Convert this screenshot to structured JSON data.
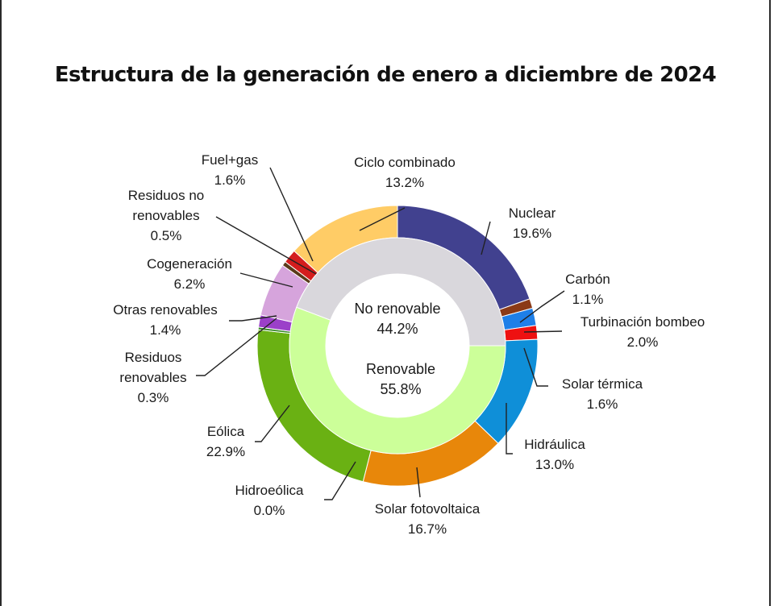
{
  "chart_data": {
    "type": "pie",
    "title": "Estructura de la generación de enero a diciembre de 2024",
    "outer": [
      {
        "name": "Nuclear",
        "value_label": "19.6%",
        "value": 19.6,
        "color": "#41418f"
      },
      {
        "name": "Carbón",
        "value_label": "1.1%",
        "value": 1.1,
        "color": "#8b3a17"
      },
      {
        "name": "Turbinación bombeo",
        "value_label": "2.0%",
        "value": 2.0,
        "color": "#1e7fe8"
      },
      {
        "name": "Solar térmica",
        "value_label": "1.6%",
        "value": 1.6,
        "color": "#ee1111"
      },
      {
        "name": "Hidráulica",
        "value_label": "13.0%",
        "value": 13.0,
        "color": "#0f8fd8"
      },
      {
        "name": "Solar fotovoltaica",
        "value_label": "16.7%",
        "value": 16.7,
        "color": "#e8870a"
      },
      {
        "name": "Hidroeólica",
        "value_label": "0.0%",
        "value": 0.0,
        "color": "#5a7a10"
      },
      {
        "name": "Eólica",
        "value_label": "22.9%",
        "value": 22.9,
        "color": "#6ab113"
      },
      {
        "name": "Residuos renovables",
        "value_label": "0.3%",
        "value": 0.3,
        "color": "#3b8a2a"
      },
      {
        "name": "Otras renovables",
        "value_label": "1.4%",
        "value": 1.4,
        "color": "#9b40c9"
      },
      {
        "name": "Cogeneración",
        "value_label": "6.2%",
        "value": 6.2,
        "color": "#d6a4dc"
      },
      {
        "name": "Residuos no renovables",
        "value_label": "0.5%",
        "value": 0.5,
        "color": "#5a3a1a"
      },
      {
        "name": "Fuel+gas",
        "value_label": "1.6%",
        "value": 1.6,
        "color": "#d41d1d"
      },
      {
        "name": "Ciclo combinado",
        "value_label": "13.2%",
        "value": 13.2,
        "color": "#ffcc66"
      }
    ],
    "inner": [
      {
        "name": "Renovable",
        "value_label": "55.8%",
        "value": 55.8,
        "color": "#ccff99"
      },
      {
        "name": "No renovable",
        "value_label": "44.2%",
        "value": 44.2,
        "color": "#d9d7dc"
      }
    ],
    "labels_text": {
      "Nuclear": [
        "Nuclear",
        "19.6%"
      ],
      "Carbón": [
        "Carbón",
        "1.1%"
      ],
      "Turbinación bombeo": [
        "Turbinación bombeo",
        "2.0%"
      ],
      "Solar térmica": [
        "Solar térmica",
        "1.6%"
      ],
      "Hidráulica": [
        "Hidráulica",
        "13.0%"
      ],
      "Solar fotovoltaica": [
        "Solar fotovoltaica",
        "16.7%"
      ],
      "Hidroeólica": [
        "Hidroeólica",
        "0.0%"
      ],
      "Eólica": [
        "Eólica",
        "22.9%"
      ],
      "Residuos renovables": [
        "Residuos",
        "renovables",
        "0.3%"
      ],
      "Otras renovables": [
        "Otras renovables",
        "1.4%"
      ],
      "Cogeneración": [
        "Cogeneración",
        "6.2%"
      ],
      "Residuos no renovables": [
        "Residuos no",
        "renovables",
        "0.5%"
      ],
      "Fuel+gas": [
        "Fuel+gas",
        "1.6%"
      ],
      "Ciclo combinado": [
        "Ciclo combinado",
        "13.2%"
      ],
      "No renovable": [
        "No renovable",
        "44.2%"
      ],
      "Renovable": [
        "Renovable",
        "55.8%"
      ]
    }
  }
}
